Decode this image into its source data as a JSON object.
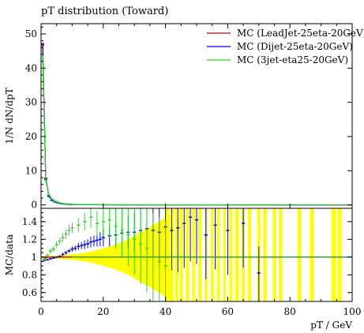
{
  "chart_data": [
    {
      "panel": "main",
      "type": "line",
      "title": "pT distribution (Toward)",
      "xlabel": "",
      "ylabel": "1/N dN/dpT",
      "xlim": [
        0,
        100
      ],
      "ylim": [
        -1,
        53
      ],
      "yticks": [
        "0",
        "10",
        "20",
        "30",
        "40",
        "50"
      ],
      "legend_position": "top-right",
      "series": [
        {
          "name": "MC (LeadJet-25eta-20GeV)",
          "color": "#d00000",
          "x": [
            0.5,
            1.5,
            2.5,
            3.5,
            4.5,
            5.5,
            6.5,
            7.5,
            8.5,
            9.5,
            12,
            16,
            20,
            30,
            40,
            60,
            80,
            100
          ],
          "y": [
            47.2,
            7.8,
            2.6,
            1.4,
            0.9,
            0.6,
            0.4,
            0.3,
            0.2,
            0.15,
            0.1,
            0.06,
            0.04,
            0.02,
            0.01,
            0.005,
            0.002,
            0.001
          ]
        },
        {
          "name": "MC (Dijet-25eta-20GeV)",
          "color": "#0000ee",
          "x": [
            0.5,
            1.5,
            2.5,
            3.5,
            4.5,
            5.5,
            6.5,
            7.5,
            8.5,
            9.5,
            12,
            16,
            20,
            30,
            40,
            60,
            80,
            100
          ],
          "y": [
            46.8,
            7.6,
            2.5,
            1.35,
            0.85,
            0.55,
            0.38,
            0.28,
            0.19,
            0.14,
            0.09,
            0.05,
            0.03,
            0.015,
            0.008,
            0.004,
            0.002,
            0.001
          ]
        },
        {
          "name": "MC (3jet-eta25-20GeV)",
          "color": "#22dd22",
          "x": [
            0.5,
            1.5,
            2.5,
            3.5,
            4.5,
            5.5,
            6.5,
            7.5,
            8.5,
            9.5,
            12,
            16,
            20,
            30,
            40,
            60,
            80,
            100
          ],
          "y": [
            44.0,
            7.2,
            2.9,
            1.7,
            1.1,
            0.75,
            0.5,
            0.38,
            0.28,
            0.2,
            0.14,
            0.08,
            0.05,
            0.02,
            0.01,
            0.005,
            0.002,
            0.001
          ]
        }
      ]
    },
    {
      "panel": "ratio",
      "type": "scatter",
      "xlabel": "pT / GeV",
      "ylabel": "MC/data",
      "xlim": [
        0,
        100
      ],
      "ylim": [
        0.5,
        1.55
      ],
      "xticks": [
        "0",
        "20",
        "40",
        "60",
        "80",
        "100"
      ],
      "yticks": [
        "0.6",
        "0.8",
        "1",
        "1.2",
        "1.4"
      ],
      "band": {
        "color": "#ffff00",
        "x": [
          0,
          2,
          4,
          6,
          8,
          10,
          12,
          14,
          16,
          18,
          20,
          22,
          24,
          26,
          28,
          30,
          32,
          34,
          36,
          38,
          40,
          42
        ],
        "half_width": [
          0.01,
          0.01,
          0.015,
          0.02,
          0.025,
          0.03,
          0.04,
          0.05,
          0.06,
          0.08,
          0.1,
          0.12,
          0.14,
          0.17,
          0.2,
          0.24,
          0.28,
          0.32,
          0.36,
          0.4,
          0.45,
          0.5
        ]
      },
      "bars": [
        {
          "x": 40.5,
          "w": 0.8
        },
        {
          "x": 42,
          "w": 0.9
        },
        {
          "x": 43.5,
          "w": 0.8
        },
        {
          "x": 45,
          "w": 0.9
        },
        {
          "x": 47,
          "w": 1.0
        },
        {
          "x": 49,
          "w": 0.9
        },
        {
          "x": 51,
          "w": 1.0
        },
        {
          "x": 53,
          "w": 0.9
        },
        {
          "x": 55,
          "w": 1.0
        },
        {
          "x": 57,
          "w": 1.0
        },
        {
          "x": 59,
          "w": 0.9
        },
        {
          "x": 61,
          "w": 1.0
        },
        {
          "x": 63,
          "w": 1.1
        },
        {
          "x": 65,
          "w": 1.0
        },
        {
          "x": 67,
          "w": 1.1
        },
        {
          "x": 70,
          "w": 1.0
        },
        {
          "x": 72,
          "w": 1.2
        },
        {
          "x": 75,
          "w": 1.1
        },
        {
          "x": 77,
          "w": 1.2
        },
        {
          "x": 83,
          "w": 1.2
        },
        {
          "x": 87,
          "w": 1.2
        },
        {
          "x": 94,
          "w": 1.3
        },
        {
          "x": 96,
          "w": 1.2
        }
      ],
      "series": [
        {
          "name": "MC (LeadJet-25eta-20GeV)",
          "color": "#d00000",
          "x": [
            0.5,
            1.5,
            2.5,
            3.5,
            4.5,
            5.5,
            6.5,
            7.5,
            8.5,
            9.5
          ],
          "y": [
            0.97,
            0.99,
            1.0,
            1.0,
            1.0,
            1.0,
            1.0,
            1.0,
            1.0,
            1.0
          ]
        },
        {
          "name": "MC (Dijet-25eta-20GeV)",
          "color": "#0000ee",
          "x": [
            1,
            2,
            3,
            4,
            5,
            6,
            7,
            8,
            9,
            10,
            11,
            12,
            13,
            14,
            15,
            16,
            17,
            18,
            19,
            20,
            22,
            24,
            26,
            28,
            30,
            32,
            34,
            36,
            38,
            40,
            42,
            44,
            46,
            48,
            50,
            53,
            56,
            60,
            65,
            70
          ],
          "y": [
            0.96,
            0.97,
            0.98,
            0.99,
            1.0,
            1.01,
            1.03,
            1.05,
            1.07,
            1.09,
            1.1,
            1.12,
            1.13,
            1.14,
            1.15,
            1.17,
            1.18,
            1.19,
            1.2,
            1.22,
            1.24,
            1.25,
            1.27,
            1.28,
            1.28,
            1.3,
            1.32,
            1.3,
            1.28,
            1.34,
            1.3,
            1.33,
            1.38,
            1.45,
            1.42,
            1.25,
            1.36,
            1.3,
            1.38,
            0.82
          ],
          "err": [
            0.01,
            0.01,
            0.01,
            0.01,
            0.01,
            0.01,
            0.02,
            0.02,
            0.02,
            0.03,
            0.03,
            0.04,
            0.04,
            0.05,
            0.05,
            0.06,
            0.06,
            0.07,
            0.08,
            0.1,
            0.12,
            0.14,
            0.16,
            0.18,
            0.22,
            0.25,
            0.28,
            0.3,
            0.35,
            0.4,
            0.45,
            0.5,
            0.5,
            0.5,
            0.5,
            0.5,
            0.5,
            0.5,
            0.5,
            0.3
          ]
        },
        {
          "name": "MC (3jet-eta25-20GeV)",
          "color": "#22dd22",
          "x": [
            1,
            2,
            3,
            4,
            5,
            6,
            7,
            8,
            9,
            10,
            12,
            14,
            16,
            18,
            20,
            22,
            24,
            26,
            28,
            30,
            32,
            34,
            36,
            38,
            40
          ],
          "y": [
            0.97,
            1.02,
            1.07,
            1.09,
            1.14,
            1.18,
            1.22,
            1.26,
            1.3,
            1.33,
            1.36,
            1.4,
            1.45,
            1.38,
            1.4,
            1.42,
            1.35,
            1.3,
            1.25,
            1.2,
            1.15,
            1.1,
            1.0,
            0.95,
            0.9
          ],
          "err": [
            0.02,
            0.02,
            0.03,
            0.03,
            0.04,
            0.04,
            0.05,
            0.05,
            0.06,
            0.06,
            0.08,
            0.1,
            0.12,
            0.14,
            0.16,
            0.2,
            0.25,
            0.3,
            0.35,
            0.4,
            0.45,
            0.5,
            0.5,
            0.5,
            0.5
          ]
        }
      ]
    }
  ]
}
